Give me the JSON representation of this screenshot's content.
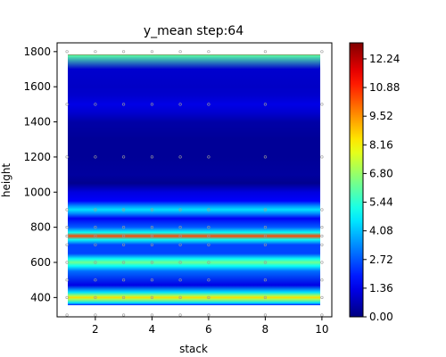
{
  "chart_data": {
    "type": "heatmap",
    "style": "filled-contour",
    "title": "y_mean step:64",
    "xlabel": "stack",
    "ylabel": "height",
    "xlim": [
      0.65,
      10.35
    ],
    "ylim": [
      290,
      1850
    ],
    "x_ticks": [
      2,
      4,
      6,
      8,
      10
    ],
    "y_ticks": [
      400,
      600,
      800,
      1000,
      1200,
      1400,
      1600,
      1800
    ],
    "colormap": "jet",
    "colorbar": {
      "min": 0.0,
      "max": 13.0,
      "ticks": [
        "0.00",
        "1.36",
        "2.72",
        "4.08",
        "5.44",
        "6.80",
        "8.16",
        "9.52",
        "10.88",
        "12.24"
      ]
    },
    "z_profile_by_height": {
      "height": [
        300,
        330,
        370,
        390,
        400,
        410,
        430,
        470,
        550,
        580,
        600,
        620,
        650,
        700,
        730,
        750,
        770,
        800,
        850,
        880,
        900,
        920,
        950,
        1000,
        1050,
        1100,
        1200,
        1300,
        1400,
        1450,
        1500,
        1550,
        1600,
        1700,
        1780,
        1790,
        1800,
        1850
      ],
      "z": [
        1.0,
        2.0,
        4.5,
        7.0,
        8.6,
        7.0,
        4.5,
        1.3,
        3.0,
        5.0,
        6.3,
        5.0,
        2.5,
        2.5,
        5.0,
        10.5,
        5.0,
        2.8,
        1.5,
        3.5,
        4.5,
        3.5,
        1.6,
        1.2,
        0.2,
        0.4,
        0.3,
        0.3,
        0.5,
        1.0,
        1.3,
        1.0,
        0.9,
        1.0,
        6.0,
        12.5,
        7.0,
        2.0
      ]
    },
    "sample_points": {
      "stack": [
        1,
        2,
        3,
        4,
        5,
        6,
        8,
        10
      ],
      "height": [
        300,
        400,
        500,
        600,
        700,
        750,
        800,
        900,
        1200,
        1500,
        1800
      ]
    }
  }
}
